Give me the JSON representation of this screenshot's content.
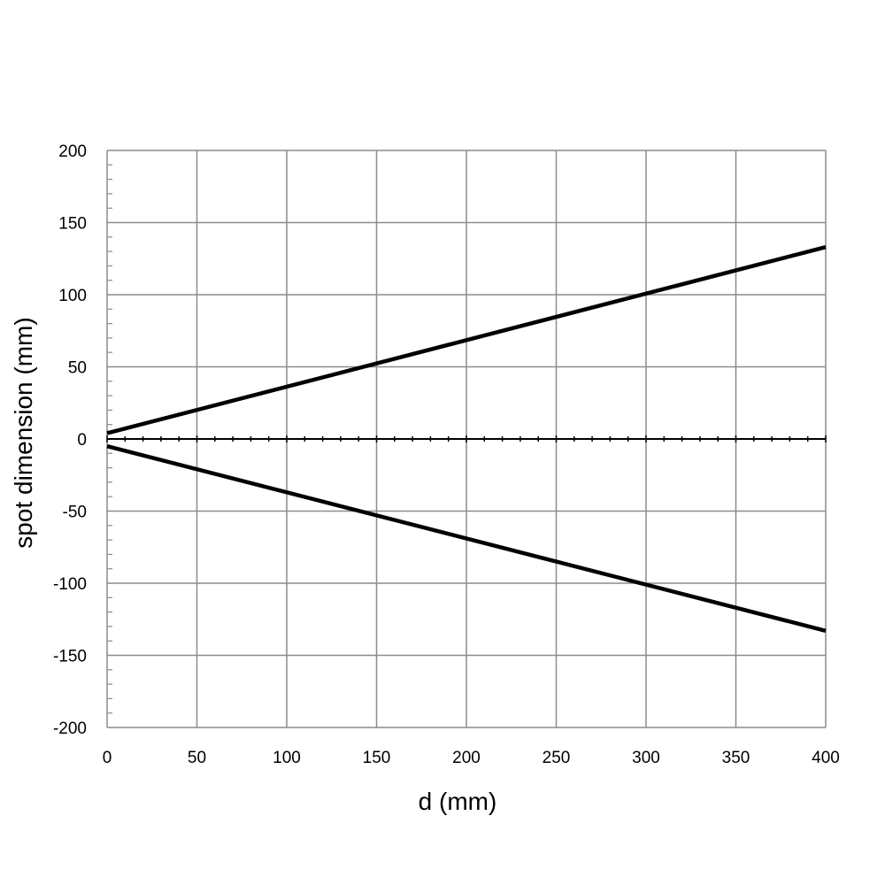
{
  "chart_data": {
    "type": "line",
    "title": "",
    "xlabel": "d (mm)",
    "ylabel": "spot dimension (mm)",
    "xlim": [
      0,
      400
    ],
    "ylim": [
      -200,
      200
    ],
    "x_ticks": [
      0,
      50,
      100,
      150,
      200,
      250,
      300,
      350,
      400
    ],
    "y_ticks": [
      200,
      150,
      100,
      50,
      0,
      -50,
      -100,
      -150,
      -200
    ],
    "x_tick_labels": [
      "0",
      "50",
      "100",
      "150",
      "200",
      "250",
      "300",
      "350",
      "400"
    ],
    "y_tick_labels": [
      "200",
      "150",
      "100",
      "50",
      "0",
      "-50",
      "-100",
      "-150",
      "-200"
    ],
    "grid": true,
    "legend": "none",
    "series": [
      {
        "x": [
          0,
          400
        ],
        "values": [
          4,
          133
        ],
        "color": "#000000"
      },
      {
        "x": [
          0,
          400
        ],
        "values": [
          -5,
          -133
        ],
        "color": "#000000"
      }
    ]
  }
}
